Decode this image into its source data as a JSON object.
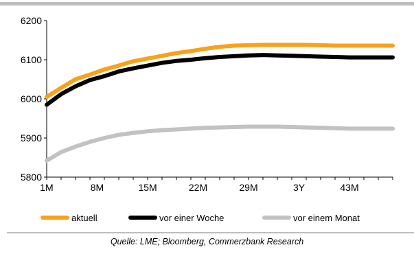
{
  "chart_data": {
    "type": "line",
    "title": "",
    "xlabel": "",
    "ylabel": "",
    "ylim": [
      5800,
      6200
    ],
    "yticks": [
      5800,
      5900,
      6000,
      6100,
      6200
    ],
    "x_tick_labels": [
      "1M",
      "8M",
      "15M",
      "22M",
      "29M",
      "3Y",
      "43M"
    ],
    "x_months": [
      1,
      3,
      5,
      7,
      9,
      11,
      13,
      15,
      17,
      19,
      21,
      23,
      25,
      27,
      29,
      31,
      33,
      35,
      37,
      39,
      41,
      43,
      45,
      47,
      49
    ],
    "series": [
      {
        "name": "aktuell",
        "color": "#f7a21b",
        "values": [
          6005,
          6028,
          6050,
          6062,
          6075,
          6085,
          6096,
          6103,
          6110,
          6117,
          6122,
          6128,
          6133,
          6136,
          6137,
          6138,
          6138,
          6138,
          6138,
          6137,
          6136,
          6136,
          6136,
          6136,
          6136
        ]
      },
      {
        "name": "vor einer Woche",
        "color": "#000000",
        "values": [
          5985,
          6012,
          6032,
          6048,
          6058,
          6070,
          6078,
          6085,
          6092,
          6097,
          6100,
          6104,
          6107,
          6109,
          6111,
          6112,
          6111,
          6110,
          6109,
          6108,
          6107,
          6106,
          6106,
          6106,
          6106
        ]
      },
      {
        "name": "vor einem Monat",
        "color": "#c2c2c2",
        "values": [
          5842,
          5864,
          5878,
          5890,
          5900,
          5908,
          5913,
          5917,
          5920,
          5922,
          5924,
          5926,
          5927,
          5928,
          5929,
          5929,
          5929,
          5928,
          5927,
          5926,
          5925,
          5924,
          5924,
          5924,
          5924
        ]
      }
    ],
    "grid": false,
    "legend_position": "bottom"
  },
  "source": "Quelle: LME; Bloomberg, Commerzbank Research"
}
